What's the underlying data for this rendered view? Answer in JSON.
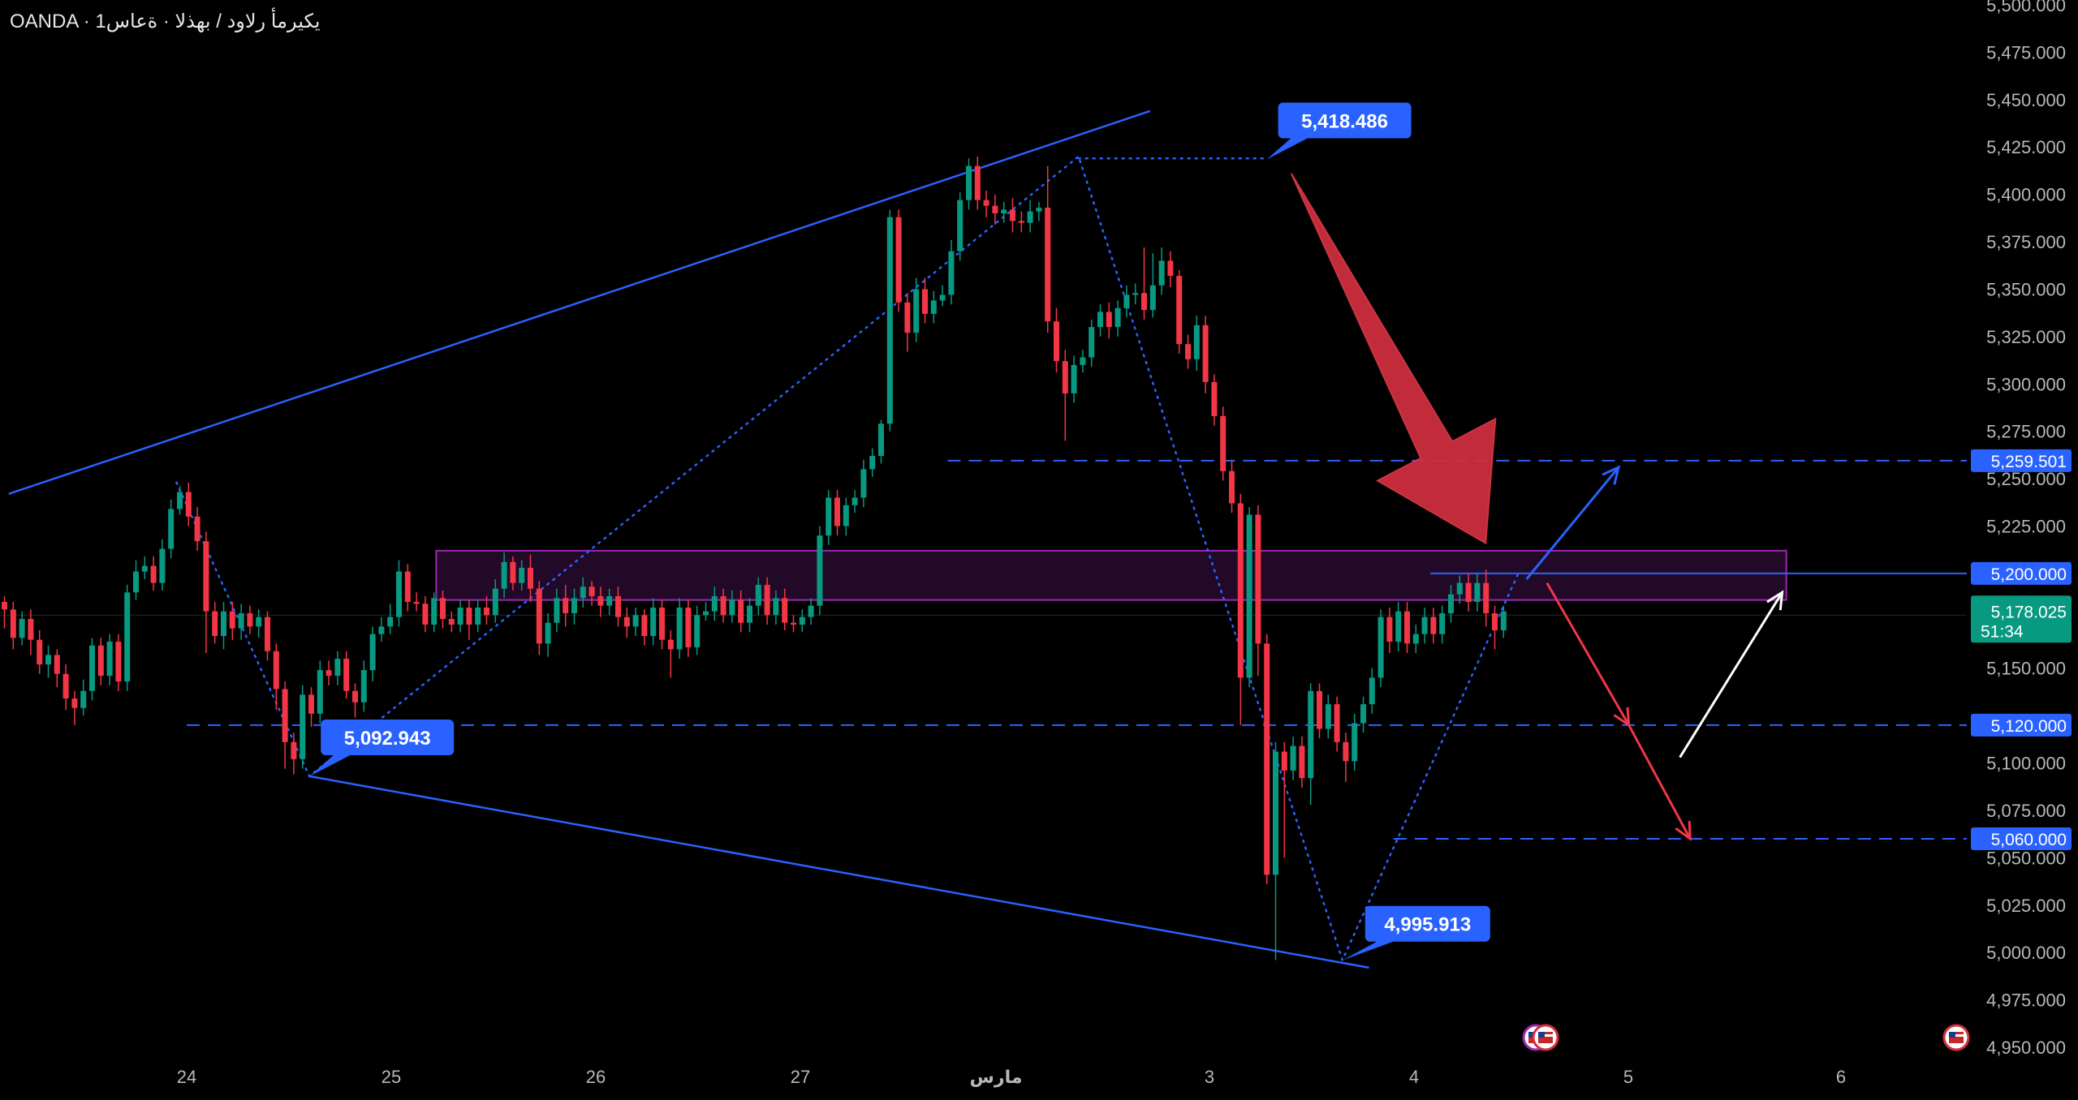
{
  "header": {
    "symbol_line": "OANDA · يكيرمأ رلاود / بهذلا · ةعاس1"
  },
  "colors": {
    "background": "#000000",
    "up": "#089981",
    "down": "#f23645",
    "trendline": "#2962ff",
    "zone": "#9c27b0",
    "current_price": "#089981"
  },
  "chart_data": {
    "type": "candlestick",
    "symbol": "XAUUSD",
    "broker": "OANDA",
    "timeframe": "1H",
    "title": "",
    "y_axis": {
      "range": [
        4950,
        5500
      ],
      "ticks": [
        "5,500.000",
        "5,475.000",
        "5,450.000",
        "5,425.000",
        "5,400.000",
        "5,375.000",
        "5,350.000",
        "5,325.000",
        "5,300.000",
        "5,275.000",
        "5,250.000",
        "5,225.000",
        "5,150.000",
        "5,100.000",
        "5,075.000",
        "5,050.000",
        "5,025.000",
        "5,000.000",
        "4,975.000",
        "4,950.000"
      ],
      "tick_values": [
        5500,
        5475,
        5450,
        5425,
        5400,
        5375,
        5350,
        5325,
        5300,
        5275,
        5250,
        5225,
        5150,
        5100,
        5075,
        5050,
        5025,
        5000,
        4975,
        4950
      ]
    },
    "x_axis": {
      "labels": [
        {
          "text": "24",
          "day": 0
        },
        {
          "text": "25",
          "day": 1
        },
        {
          "text": "26",
          "day": 2
        },
        {
          "text": "27",
          "day": 3
        },
        {
          "text": "مارس",
          "day": 4
        },
        {
          "text": "3",
          "day": 5
        },
        {
          "text": "4",
          "day": 6
        },
        {
          "text": "5",
          "day": 7
        },
        {
          "text": "6",
          "day": 8
        }
      ]
    },
    "current_price": {
      "value": 5178.025,
      "label": "5,178.025",
      "countdown": "51:34"
    },
    "price_tags": [
      {
        "label": "5,418.486",
        "value": 5418.486,
        "day": 5.28
      },
      {
        "label": "5,092.943",
        "value": 5092.943,
        "day": 0.6
      },
      {
        "label": "4,995.913",
        "value": 4995.913,
        "day": 5.65
      }
    ],
    "levels": [
      {
        "label": "5,259.501",
        "value": 5259.501,
        "from_day": 3.72
      },
      {
        "label": "5,200.000",
        "value": 5200.0,
        "from_day": 6.08,
        "style": "solid"
      },
      {
        "label": "5,120.000",
        "value": 5120.0,
        "from_day": 0
      },
      {
        "label": "5,060.000",
        "value": 5060.0,
        "from_day": 5.9
      }
    ],
    "zone": {
      "low": 5186,
      "high": 5212,
      "from_day": 1.22,
      "to_day": 7.82
    },
    "trendlines": [
      {
        "name": "upper",
        "from": [
          -0.87,
          5242
        ],
        "to": [
          4.71,
          5444
        ]
      },
      {
        "name": "lower",
        "from": [
          0.6,
          5093
        ],
        "to": [
          5.78,
          4992
        ]
      }
    ],
    "pattern_points": [
      [
        -0.05,
        5248
      ],
      [
        0.6,
        5093
      ],
      [
        4.36,
        5420
      ],
      [
        5.65,
        4996
      ],
      [
        6.51,
        5200
      ]
    ],
    "top_dotted": {
      "from_day": 4.36,
      "to_day": 5.28,
      "value": 5419
    },
    "scenario_arrows": [
      {
        "color": "#2962ff",
        "from": [
          6.55,
          5197
        ],
        "to": [
          7.0,
          5256
        ]
      },
      {
        "color": "#f23645",
        "from": [
          6.65,
          5195
        ],
        "to": [
          7.05,
          5120
        ]
      },
      {
        "color": "#f23645",
        "from": [
          7.05,
          5120
        ],
        "to": [
          7.35,
          5060
        ]
      },
      {
        "color": "#ffffff",
        "from": [
          7.3,
          5103
        ],
        "to": [
          7.8,
          5190
        ]
      }
    ],
    "big_arrow": {
      "color": "#d32f3f",
      "from": [
        5.4,
        5411
      ],
      "to": [
        6.35,
        5216
      ]
    },
    "candles": [
      [
        5185,
        5181,
        5171,
        5188
      ],
      [
        5181,
        5166,
        5160,
        5185
      ],
      [
        5166,
        5176,
        5162,
        5180
      ],
      [
        5176,
        5165,
        5157,
        5181
      ],
      [
        5165,
        5152,
        5147,
        5170
      ],
      [
        5152,
        5157,
        5145,
        5162
      ],
      [
        5157,
        5147,
        5140,
        5160
      ],
      [
        5147,
        5134,
        5128,
        5152
      ],
      [
        5134,
        5129,
        5120,
        5138
      ],
      [
        5129,
        5138,
        5125,
        5144
      ],
      [
        5138,
        5162,
        5133,
        5166
      ],
      [
        5162,
        5146,
        5141,
        5166
      ],
      [
        5146,
        5164,
        5141,
        5168
      ],
      [
        5164,
        5143,
        5138,
        5168
      ],
      [
        5143,
        5190,
        5138,
        5194
      ],
      [
        5190,
        5201,
        5186,
        5207
      ],
      [
        5201,
        5204,
        5197,
        5209
      ],
      [
        5204,
        5195,
        5191,
        5209
      ],
      [
        5195,
        5213,
        5191,
        5218
      ],
      [
        5213,
        5234,
        5208,
        5239
      ],
      [
        5234,
        5243,
        5231,
        5246
      ],
      [
        5243,
        5230,
        5225,
        5248
      ],
      [
        5230,
        5217,
        5212,
        5235
      ],
      [
        5217,
        5180,
        5158,
        5222
      ],
      [
        5180,
        5167,
        5163,
        5185
      ],
      [
        5167,
        5180,
        5160,
        5185
      ],
      [
        5180,
        5171,
        5165,
        5185
      ],
      [
        5171,
        5179,
        5165,
        5184
      ],
      [
        5179,
        5172,
        5168,
        5183
      ],
      [
        5172,
        5177,
        5166,
        5181
      ],
      [
        5177,
        5159,
        5154,
        5180
      ],
      [
        5159,
        5139,
        5128,
        5163
      ],
      [
        5139,
        5111,
        5097,
        5143
      ],
      [
        5111,
        5102,
        5094,
        5116
      ],
      [
        5102,
        5136,
        5097,
        5141
      ],
      [
        5136,
        5126,
        5119,
        5140
      ],
      [
        5126,
        5149,
        5121,
        5154
      ],
      [
        5149,
        5146,
        5141,
        5154
      ],
      [
        5146,
        5155,
        5141,
        5159
      ],
      [
        5155,
        5138,
        5134,
        5159
      ],
      [
        5138,
        5132,
        5124,
        5142
      ],
      [
        5132,
        5149,
        5127,
        5154
      ],
      [
        5149,
        5168,
        5143,
        5172
      ],
      [
        5168,
        5172,
        5164,
        5177
      ],
      [
        5172,
        5177,
        5168,
        5184
      ],
      [
        5177,
        5201,
        5172,
        5207
      ],
      [
        5201,
        5185,
        5180,
        5205
      ],
      [
        5185,
        5184,
        5180,
        5190
      ],
      [
        5184,
        5173,
        5169,
        5188
      ],
      [
        5173,
        5187,
        5169,
        5190
      ],
      [
        5187,
        5176,
        5171,
        5191
      ],
      [
        5176,
        5173,
        5169,
        5180
      ],
      [
        5173,
        5182,
        5169,
        5186
      ],
      [
        5182,
        5173,
        5165,
        5186
      ],
      [
        5173,
        5182,
        5169,
        5186
      ],
      [
        5182,
        5178,
        5173,
        5188
      ],
      [
        5178,
        5192,
        5174,
        5197
      ],
      [
        5192,
        5206,
        5187,
        5211
      ],
      [
        5206,
        5195,
        5191,
        5209
      ],
      [
        5195,
        5203,
        5191,
        5207
      ],
      [
        5203,
        5192,
        5185,
        5210
      ],
      [
        5192,
        5163,
        5157,
        5196
      ],
      [
        5163,
        5174,
        5156,
        5179
      ],
      [
        5174,
        5187,
        5169,
        5192
      ],
      [
        5187,
        5179,
        5172,
        5194
      ],
      [
        5179,
        5187,
        5173,
        5192
      ],
      [
        5187,
        5193,
        5182,
        5198
      ],
      [
        5193,
        5188,
        5183,
        5196
      ],
      [
        5188,
        5183,
        5177,
        5193
      ],
      [
        5183,
        5188,
        5178,
        5192
      ],
      [
        5188,
        5177,
        5172,
        5193
      ],
      [
        5177,
        5172,
        5166,
        5182
      ],
      [
        5172,
        5178,
        5167,
        5182
      ],
      [
        5178,
        5167,
        5162,
        5181
      ],
      [
        5167,
        5182,
        5162,
        5187
      ],
      [
        5182,
        5165,
        5160,
        5186
      ],
      [
        5165,
        5160,
        5145,
        5170
      ],
      [
        5160,
        5182,
        5155,
        5187
      ],
      [
        5182,
        5161,
        5156,
        5186
      ],
      [
        5161,
        5178,
        5157,
        5183
      ],
      [
        5178,
        5180,
        5175,
        5185
      ],
      [
        5180,
        5188,
        5175,
        5193
      ],
      [
        5188,
        5178,
        5174,
        5192
      ],
      [
        5178,
        5186,
        5174,
        5191
      ],
      [
        5186,
        5174,
        5169,
        5191
      ],
      [
        5174,
        5183,
        5169,
        5187
      ],
      [
        5183,
        5194,
        5178,
        5198
      ],
      [
        5194,
        5178,
        5173,
        5198
      ],
      [
        5178,
        5187,
        5173,
        5191
      ],
      [
        5187,
        5174,
        5170,
        5192
      ],
      [
        5174,
        5173,
        5169,
        5178
      ],
      [
        5173,
        5177,
        5169,
        5181
      ],
      [
        5177,
        5183,
        5173,
        5187
      ],
      [
        5183,
        5220,
        5178,
        5225
      ],
      [
        5220,
        5240,
        5215,
        5244
      ],
      [
        5240,
        5225,
        5220,
        5244
      ],
      [
        5225,
        5236,
        5220,
        5240
      ],
      [
        5236,
        5240,
        5232,
        5244
      ],
      [
        5240,
        5255,
        5235,
        5260
      ],
      [
        5255,
        5262,
        5251,
        5266
      ],
      [
        5262,
        5279,
        5258,
        5281
      ],
      [
        5279,
        5388,
        5275,
        5392
      ],
      [
        5388,
        5343,
        5338,
        5392
      ],
      [
        5343,
        5327,
        5317,
        5348
      ],
      [
        5327,
        5350,
        5322,
        5356
      ],
      [
        5350,
        5337,
        5332,
        5356
      ],
      [
        5337,
        5344,
        5332,
        5349
      ],
      [
        5344,
        5347,
        5341,
        5352
      ],
      [
        5347,
        5370,
        5342,
        5376
      ],
      [
        5370,
        5397,
        5365,
        5401
      ],
      [
        5397,
        5415,
        5392,
        5419
      ],
      [
        5415,
        5397,
        5392,
        5420
      ],
      [
        5397,
        5394,
        5388,
        5402
      ],
      [
        5394,
        5390,
        5384,
        5400
      ],
      [
        5390,
        5392,
        5385,
        5396
      ],
      [
        5392,
        5386,
        5380,
        5398
      ],
      [
        5386,
        5385,
        5380,
        5391
      ],
      [
        5385,
        5391,
        5380,
        5397
      ],
      [
        5391,
        5393,
        5386,
        5396
      ],
      [
        5393,
        5333,
        5327,
        5415
      ],
      [
        5333,
        5312,
        5306,
        5340
      ],
      [
        5312,
        5295,
        5270,
        5318
      ],
      [
        5295,
        5310,
        5290,
        5315
      ],
      [
        5310,
        5314,
        5306,
        5318
      ],
      [
        5314,
        5330,
        5309,
        5334
      ],
      [
        5330,
        5338,
        5325,
        5342
      ],
      [
        5338,
        5330,
        5324,
        5343
      ],
      [
        5330,
        5340,
        5325,
        5344
      ],
      [
        5340,
        5347,
        5335,
        5352
      ],
      [
        5347,
        5348,
        5342,
        5353
      ],
      [
        5348,
        5339,
        5334,
        5372
      ],
      [
        5339,
        5352,
        5335,
        5369
      ],
      [
        5352,
        5365,
        5347,
        5372
      ],
      [
        5365,
        5357,
        5351,
        5370
      ],
      [
        5357,
        5321,
        5316,
        5360
      ],
      [
        5321,
        5313,
        5308,
        5326
      ],
      [
        5313,
        5331,
        5307,
        5336
      ],
      [
        5331,
        5301,
        5295,
        5336
      ],
      [
        5301,
        5283,
        5278,
        5305
      ],
      [
        5283,
        5254,
        5249,
        5288
      ],
      [
        5254,
        5237,
        5232,
        5260
      ],
      [
        5237,
        5145,
        5120,
        5242
      ],
      [
        5145,
        5231,
        5140,
        5235
      ],
      [
        5231,
        5163,
        5146,
        5236
      ],
      [
        5163,
        5041,
        5036,
        5168
      ],
      [
        5041,
        5106,
        4996,
        5111
      ],
      [
        5106,
        5096,
        5050,
        5111
      ],
      [
        5096,
        5109,
        5091,
        5114
      ],
      [
        5109,
        5092,
        5087,
        5114
      ],
      [
        5092,
        5138,
        5078,
        5142
      ],
      [
        5138,
        5118,
        5113,
        5142
      ],
      [
        5118,
        5131,
        5113,
        5136
      ],
      [
        5131,
        5111,
        5106,
        5135
      ],
      [
        5111,
        5101,
        5090,
        5116
      ],
      [
        5101,
        5121,
        5096,
        5126
      ],
      [
        5121,
        5131,
        5116,
        5135
      ],
      [
        5131,
        5145,
        5126,
        5150
      ],
      [
        5145,
        5177,
        5140,
        5181
      ],
      [
        5177,
        5164,
        5158,
        5182
      ],
      [
        5164,
        5180,
        5159,
        5185
      ],
      [
        5180,
        5163,
        5158,
        5185
      ],
      [
        5163,
        5168,
        5158,
        5173
      ],
      [
        5168,
        5177,
        5163,
        5182
      ],
      [
        5177,
        5168,
        5163,
        5182
      ],
      [
        5168,
        5179,
        5163,
        5183
      ],
      [
        5179,
        5189,
        5174,
        5194
      ],
      [
        5189,
        5195,
        5184,
        5199
      ],
      [
        5195,
        5185,
        5180,
        5200
      ],
      [
        5185,
        5195,
        5180,
        5200
      ],
      [
        5195,
        5179,
        5172,
        5202
      ],
      [
        5179,
        5170,
        5160,
        5183
      ],
      [
        5170,
        5180,
        5166,
        5183
      ]
    ]
  }
}
